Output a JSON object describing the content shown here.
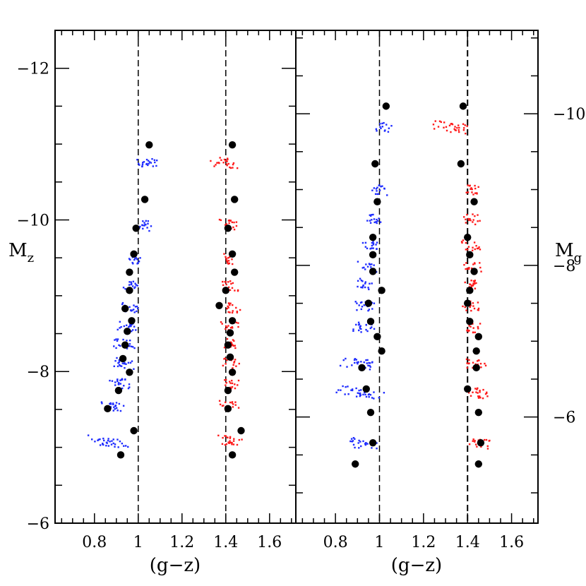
{
  "chart_data": [
    {
      "type": "scatter",
      "panel": "left",
      "xlabel": "(g−z)",
      "ylabel_main": "M",
      "ylabel_sub": "z",
      "xlim": [
        0.62,
        1.72
      ],
      "ylim": [
        -6,
        -12.5
      ],
      "x_ticks": [
        0.8,
        1,
        1.2,
        1.4,
        1.6
      ],
      "x_tick_labels": [
        "0.8",
        "1",
        "1.2",
        "1.4",
        "1.6"
      ],
      "y_ticks": [
        -12,
        -10,
        -8,
        -6
      ],
      "y_tick_labels": [
        "−12",
        "−10",
        "−8",
        "−6"
      ],
      "reference_lines_x": [
        1.0,
        1.4
      ],
      "colors": {
        "blue": "#1e2cff",
        "red": "#ff1a1a",
        "black": "#000000"
      },
      "black_points": [
        [
          1.05,
          -10.99
        ],
        [
          1.03,
          -10.27
        ],
        [
          0.99,
          -9.89
        ],
        [
          0.98,
          -9.55
        ],
        [
          0.96,
          -9.31
        ],
        [
          0.96,
          -9.07
        ],
        [
          0.94,
          -8.83
        ],
        [
          0.97,
          -8.67
        ],
        [
          0.95,
          -8.53
        ],
        [
          0.94,
          -8.35
        ],
        [
          0.93,
          -8.17
        ],
        [
          0.96,
          -7.99
        ],
        [
          0.91,
          -7.75
        ],
        [
          0.86,
          -7.51
        ],
        [
          0.98,
          -7.22
        ],
        [
          0.92,
          -6.9
        ],
        [
          1.43,
          -10.99
        ],
        [
          1.44,
          -10.27
        ],
        [
          1.41,
          -9.89
        ],
        [
          1.43,
          -9.55
        ],
        [
          1.44,
          -9.31
        ],
        [
          1.4,
          -9.07
        ],
        [
          1.37,
          -8.87
        ],
        [
          1.43,
          -8.67
        ],
        [
          1.42,
          -8.51
        ],
        [
          1.41,
          -8.35
        ],
        [
          1.42,
          -8.19
        ],
        [
          1.43,
          -7.99
        ],
        [
          1.41,
          -7.75
        ],
        [
          1.41,
          -7.51
        ],
        [
          1.47,
          -7.22
        ],
        [
          1.43,
          -6.9
        ]
      ],
      "blue_clusters": [
        {
          "x": 1.04,
          "y": -10.75,
          "spread": 0.045,
          "n": 22
        },
        {
          "x": 1.02,
          "y": -9.93,
          "spread": 0.035,
          "n": 18
        },
        {
          "x": 0.99,
          "y": -9.48,
          "spread": 0.03,
          "n": 14
        },
        {
          "x": 0.97,
          "y": -9.13,
          "spread": 0.035,
          "n": 18
        },
        {
          "x": 0.96,
          "y": -8.84,
          "spread": 0.035,
          "n": 18
        },
        {
          "x": 0.95,
          "y": -8.6,
          "spread": 0.035,
          "n": 18
        },
        {
          "x": 0.94,
          "y": -8.36,
          "spread": 0.04,
          "n": 20
        },
        {
          "x": 0.93,
          "y": -8.11,
          "spread": 0.04,
          "n": 20
        },
        {
          "x": 0.92,
          "y": -7.84,
          "spread": 0.045,
          "n": 22
        },
        {
          "x": 0.88,
          "y": -7.54,
          "spread": 0.05,
          "n": 22
        },
        {
          "x": 0.86,
          "y": -7.08,
          "spread": 0.075,
          "n": 32
        }
      ],
      "red_clusters": [
        {
          "x": 1.4,
          "y": -10.75,
          "spread": 0.05,
          "n": 24
        },
        {
          "x": 1.42,
          "y": -9.93,
          "spread": 0.035,
          "n": 18
        },
        {
          "x": 1.42,
          "y": -9.48,
          "spread": 0.03,
          "n": 14
        },
        {
          "x": 1.42,
          "y": -9.13,
          "spread": 0.035,
          "n": 16
        },
        {
          "x": 1.42,
          "y": -8.84,
          "spread": 0.035,
          "n": 16
        },
        {
          "x": 1.42,
          "y": -8.6,
          "spread": 0.035,
          "n": 16
        },
        {
          "x": 1.42,
          "y": -8.36,
          "spread": 0.035,
          "n": 16
        },
        {
          "x": 1.42,
          "y": -8.11,
          "spread": 0.035,
          "n": 16
        },
        {
          "x": 1.42,
          "y": -7.84,
          "spread": 0.035,
          "n": 16
        },
        {
          "x": 1.42,
          "y": -7.54,
          "spread": 0.04,
          "n": 20
        },
        {
          "x": 1.42,
          "y": -7.08,
          "spread": 0.05,
          "n": 24
        }
      ]
    },
    {
      "type": "scatter",
      "panel": "right",
      "xlabel": "(g−z)",
      "ylabel_main": "M",
      "ylabel_sub": "g",
      "xlim": [
        0.62,
        1.72
      ],
      "ylim": [
        -4.6,
        -11.1
      ],
      "x_ticks": [
        0.8,
        1,
        1.2,
        1.4,
        1.6
      ],
      "x_tick_labels": [
        "0.8",
        "1",
        "1.2",
        "1.4",
        "1.6"
      ],
      "y_ticks": [
        -10,
        -8,
        -6
      ],
      "y_tick_labels": [
        "−10",
        "−8",
        "−6"
      ],
      "reference_lines_x": [
        1.0,
        1.4
      ],
      "colors": {
        "blue": "#1e2cff",
        "red": "#ff1a1a",
        "black": "#000000"
      },
      "black_points": [
        [
          1.03,
          -10.1
        ],
        [
          0.98,
          -9.34
        ],
        [
          0.99,
          -8.84
        ],
        [
          0.97,
          -8.37
        ],
        [
          0.97,
          -8.14
        ],
        [
          0.97,
          -7.92
        ],
        [
          1.01,
          -7.67
        ],
        [
          0.95,
          -7.5
        ],
        [
          0.96,
          -7.26
        ],
        [
          0.99,
          -7.06
        ],
        [
          1.01,
          -6.87
        ],
        [
          0.92,
          -6.65
        ],
        [
          0.94,
          -6.37
        ],
        [
          0.96,
          -6.06
        ],
        [
          0.97,
          -5.66
        ],
        [
          0.89,
          -5.38
        ],
        [
          1.38,
          -10.1
        ],
        [
          1.37,
          -9.34
        ],
        [
          1.43,
          -8.84
        ],
        [
          1.4,
          -8.37
        ],
        [
          1.41,
          -8.14
        ],
        [
          1.43,
          -7.92
        ],
        [
          1.41,
          -7.67
        ],
        [
          1.4,
          -7.5
        ],
        [
          1.41,
          -7.26
        ],
        [
          1.45,
          -7.06
        ],
        [
          1.44,
          -6.87
        ],
        [
          1.44,
          -6.65
        ],
        [
          1.4,
          -6.37
        ],
        [
          1.45,
          -6.06
        ],
        [
          1.46,
          -5.66
        ],
        [
          1.45,
          -5.38
        ]
      ],
      "blue_clusters": [
        {
          "x": 1.02,
          "y": -9.82,
          "spread": 0.03,
          "n": 14
        },
        {
          "x": 1.0,
          "y": -9.0,
          "spread": 0.035,
          "n": 16
        },
        {
          "x": 0.97,
          "y": -8.61,
          "spread": 0.035,
          "n": 16
        },
        {
          "x": 0.96,
          "y": -8.26,
          "spread": 0.035,
          "n": 16
        },
        {
          "x": 0.95,
          "y": -7.99,
          "spread": 0.035,
          "n": 16
        },
        {
          "x": 0.94,
          "y": -7.75,
          "spread": 0.035,
          "n": 16
        },
        {
          "x": 0.93,
          "y": -7.46,
          "spread": 0.04,
          "n": 18
        },
        {
          "x": 0.92,
          "y": -7.18,
          "spread": 0.045,
          "n": 20
        },
        {
          "x": 0.91,
          "y": -6.7,
          "spread": 0.07,
          "n": 28
        },
        {
          "x": 0.91,
          "y": -6.32,
          "spread": 0.09,
          "n": 34
        },
        {
          "x": 0.92,
          "y": -5.65,
          "spread": 0.06,
          "n": 26
        }
      ],
      "red_clusters": [
        {
          "x": 1.33,
          "y": -9.82,
          "spread": 0.07,
          "n": 30
        },
        {
          "x": 1.42,
          "y": -9.0,
          "spread": 0.035,
          "n": 16
        },
        {
          "x": 1.42,
          "y": -8.61,
          "spread": 0.035,
          "n": 16
        },
        {
          "x": 1.42,
          "y": -8.26,
          "spread": 0.035,
          "n": 16
        },
        {
          "x": 1.42,
          "y": -7.99,
          "spread": 0.035,
          "n": 16
        },
        {
          "x": 1.42,
          "y": -7.75,
          "spread": 0.035,
          "n": 16
        },
        {
          "x": 1.42,
          "y": -7.46,
          "spread": 0.035,
          "n": 16
        },
        {
          "x": 1.42,
          "y": -7.18,
          "spread": 0.035,
          "n": 16
        },
        {
          "x": 1.43,
          "y": -6.7,
          "spread": 0.045,
          "n": 22
        },
        {
          "x": 1.44,
          "y": -6.32,
          "spread": 0.045,
          "n": 22
        },
        {
          "x": 1.45,
          "y": -5.65,
          "spread": 0.045,
          "n": 22
        }
      ]
    }
  ]
}
